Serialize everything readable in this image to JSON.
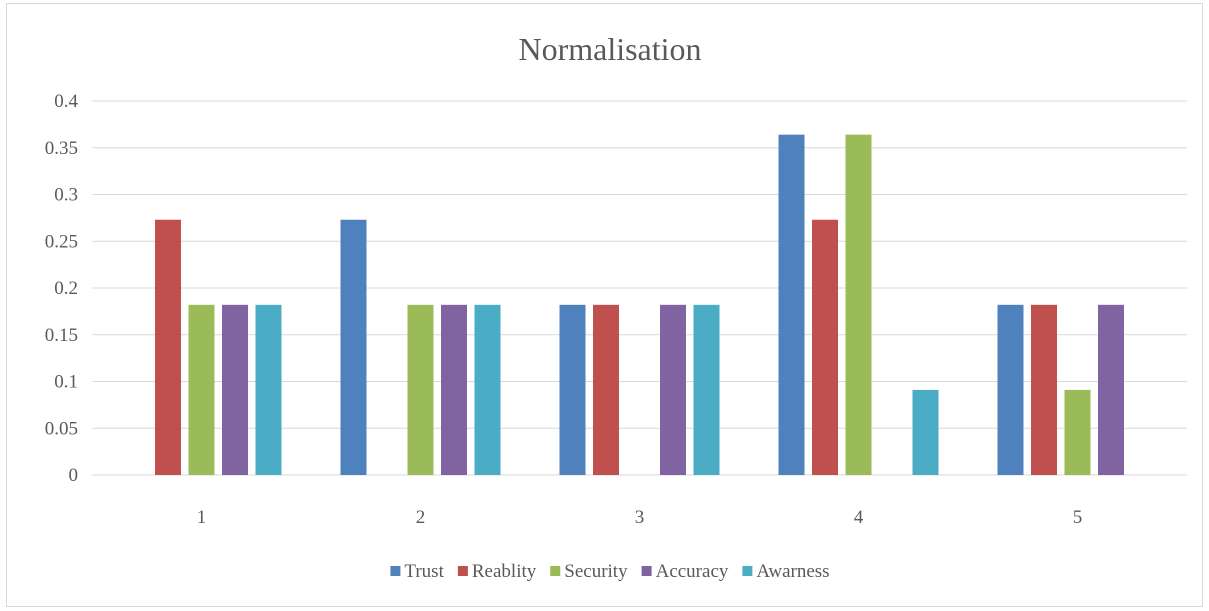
{
  "chart_data": {
    "type": "bar",
    "title": "Normalisation",
    "xlabel": "",
    "ylabel": "",
    "categories": [
      "1",
      "2",
      "3",
      "4",
      "5"
    ],
    "ylim": [
      0,
      0.4
    ],
    "yticks": [
      0,
      0.05,
      0.1,
      0.15,
      0.2,
      0.25,
      0.3,
      0.35,
      0.4
    ],
    "ytick_labels": [
      "0",
      "0.05",
      "0.1",
      "0.15",
      "0.2",
      "0.25",
      "0.3",
      "0.35",
      "0.4"
    ],
    "grid": true,
    "legend_position": "bottom",
    "series": [
      {
        "name": "Trust",
        "color": "#4F81BD",
        "values": [
          0,
          0.273,
          0.182,
          0.364,
          0.182
        ]
      },
      {
        "name": "Reablity",
        "color": "#C0504D",
        "values": [
          0.273,
          0,
          0.182,
          0.273,
          0.182
        ]
      },
      {
        "name": "Security",
        "color": "#9BBB59",
        "values": [
          0.182,
          0.182,
          0,
          0.364,
          0.091
        ]
      },
      {
        "name": "Accuracy",
        "color": "#8064A2",
        "values": [
          0.182,
          0.182,
          0.182,
          0,
          0.182
        ]
      },
      {
        "name": "Awarness",
        "color": "#4BACC6",
        "values": [
          0.182,
          0.182,
          0.182,
          0.091,
          0
        ]
      }
    ]
  }
}
